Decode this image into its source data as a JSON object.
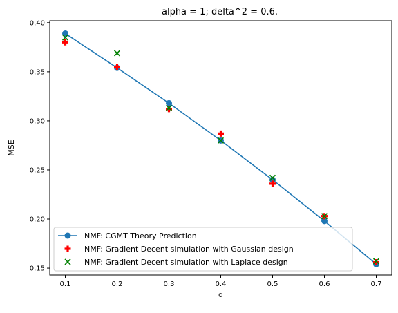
{
  "chart_data": {
    "type": "line",
    "title": "alpha = 1; delta^2 = 0.6.",
    "xlabel": "q",
    "ylabel": "MSE",
    "xlim": [
      0.07,
      0.73
    ],
    "ylim": [
      0.143,
      0.402
    ],
    "x_ticks": [
      0.1,
      0.2,
      0.3,
      0.4,
      0.5,
      0.6,
      0.7
    ],
    "x_tick_labels": [
      "0.1",
      "0.2",
      "0.3",
      "0.4",
      "0.5",
      "0.6",
      "0.7"
    ],
    "y_ticks": [
      0.15,
      0.2,
      0.25,
      0.3,
      0.35,
      0.4
    ],
    "y_tick_labels": [
      "0.15",
      "0.20",
      "0.25",
      "0.30",
      "0.35",
      "0.40"
    ],
    "grid": false,
    "legend_position": "lower-left",
    "series": [
      {
        "name": "NMF: CGMT Theory Prediction",
        "style": "line-marker-circle",
        "color": "#1f77b4",
        "x": [
          0.1,
          0.2,
          0.3,
          0.4,
          0.5,
          0.6,
          0.7
        ],
        "y": [
          0.389,
          0.354,
          0.318,
          0.28,
          0.24,
          0.198,
          0.154
        ]
      },
      {
        "name": "NMF: Gradient Decent simulation with Gaussian design",
        "style": "marker-plus",
        "color": "#ff0000",
        "x": [
          0.1,
          0.2,
          0.3,
          0.4,
          0.5,
          0.6,
          0.7
        ],
        "y": [
          0.38,
          0.355,
          0.312,
          0.287,
          0.236,
          0.203,
          0.156
        ]
      },
      {
        "name": "NMF: Gradient Decent simulation with Laplace design",
        "style": "marker-x",
        "color": "#008000",
        "x": [
          0.1,
          0.2,
          0.3,
          0.4,
          0.5,
          0.6,
          0.7
        ],
        "y": [
          0.385,
          0.369,
          0.313,
          0.28,
          0.242,
          0.203,
          0.157
        ]
      }
    ]
  }
}
